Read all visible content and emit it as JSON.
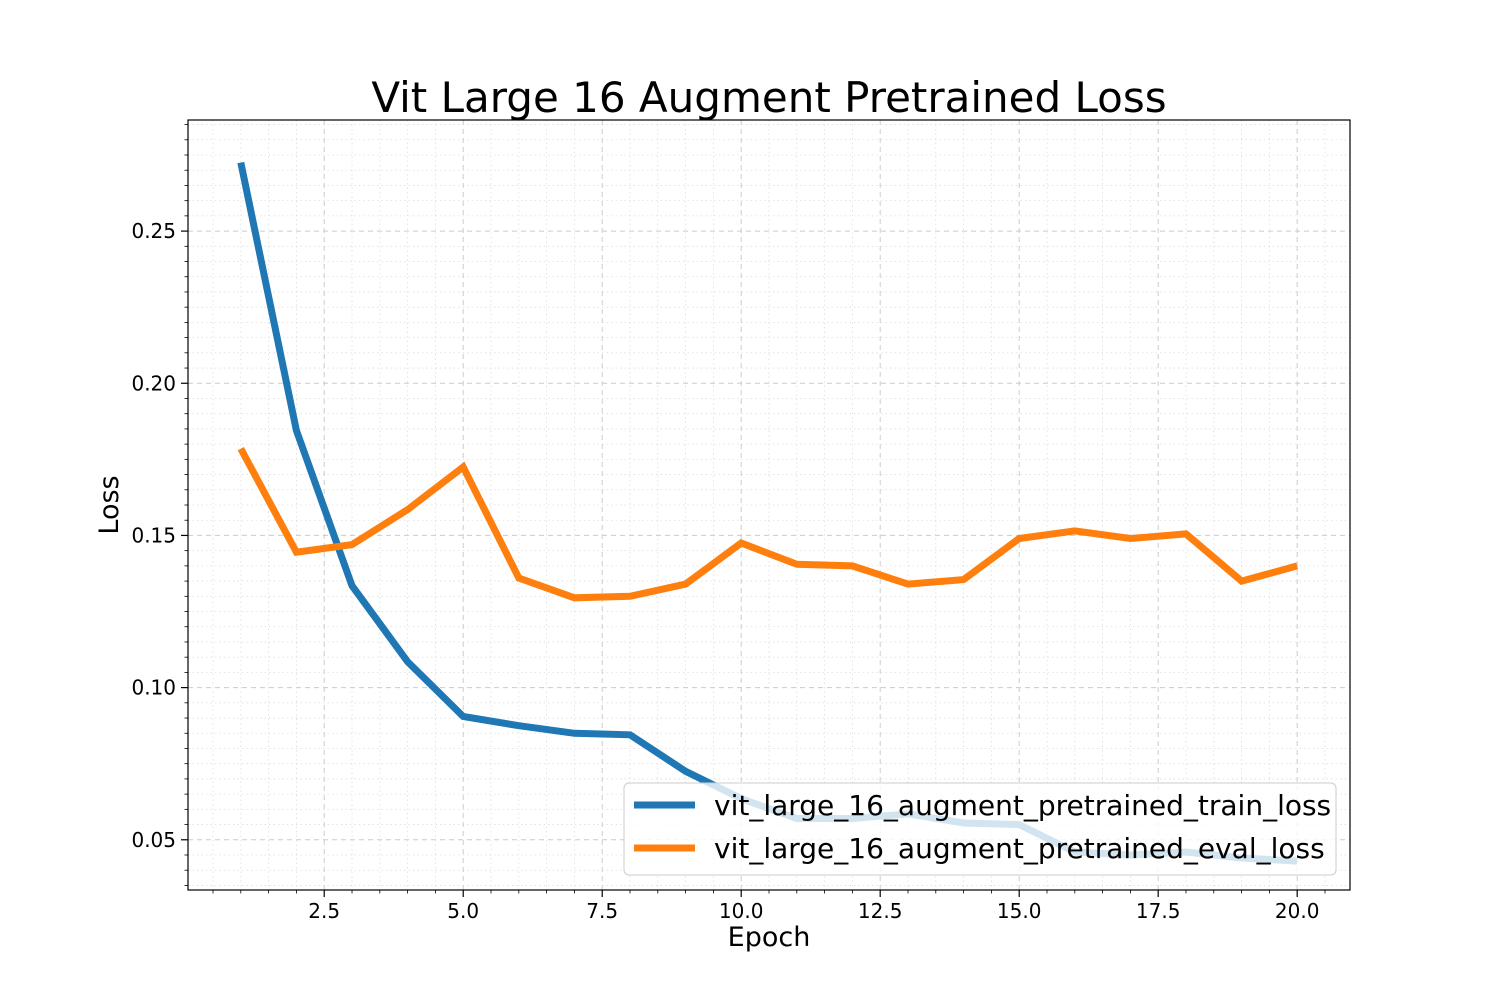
{
  "chart_data": {
    "type": "line",
    "title": "Vit Large 16 Augment Pretrained Loss",
    "xlabel": "Epoch",
    "ylabel": "Loss",
    "xlim": [
      0.05,
      20.95
    ],
    "ylim": [
      0.0335,
      0.2865
    ],
    "x_ticks": [
      2.5,
      5.0,
      7.5,
      10.0,
      12.5,
      15.0,
      17.5,
      20.0
    ],
    "x_tick_labels": [
      "2.5",
      "5.0",
      "7.5",
      "10.0",
      "12.5",
      "15.0",
      "17.5",
      "20.0"
    ],
    "y_ticks": [
      0.05,
      0.1,
      0.15,
      0.2,
      0.25
    ],
    "y_tick_labels": [
      "0.05",
      "0.10",
      "0.15",
      "0.20",
      "0.25"
    ],
    "grid": true,
    "legend_position": "lower-right",
    "x": [
      1,
      2,
      3,
      4,
      5,
      6,
      7,
      8,
      9,
      10,
      11,
      12,
      13,
      14,
      15,
      16,
      17,
      18,
      19,
      20
    ],
    "series": [
      {
        "name": "vit_large_16_augment_pretrained_train_loss",
        "color": "#1f77b4",
        "values": [
          0.2725,
          0.1845,
          0.1335,
          0.1085,
          0.0905,
          0.0875,
          0.085,
          0.0845,
          0.0725,
          0.0635,
          0.057,
          0.057,
          0.0585,
          0.0555,
          0.055,
          0.046,
          0.045,
          0.046,
          0.044,
          0.043
        ]
      },
      {
        "name": "vit_large_16_augment_pretrained_eval_loss",
        "color": "#ff7f0e",
        "values": [
          0.1785,
          0.1445,
          0.147,
          0.1585,
          0.1725,
          0.136,
          0.1295,
          0.13,
          0.134,
          0.1475,
          0.1405,
          0.14,
          0.134,
          0.1355,
          0.149,
          0.1515,
          0.149,
          0.1505,
          0.135,
          0.14
        ]
      }
    ]
  }
}
